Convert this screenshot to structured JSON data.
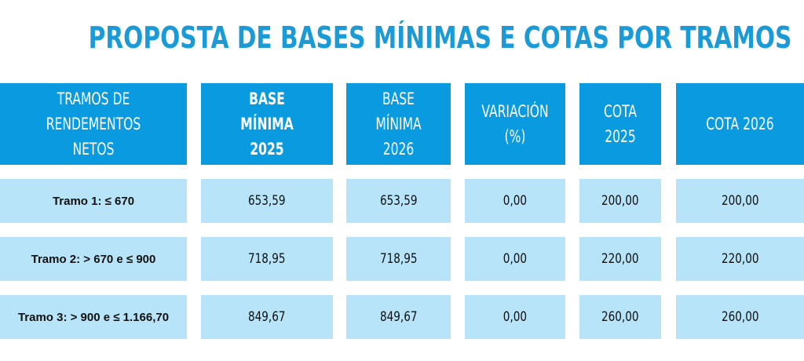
{
  "chart_data": {
    "type": "table",
    "title": "PROPOSTA DE BASES MÍNIMAS E COTAS POR TRAMOS",
    "columns": [
      "TRAMOS DE RENDEMENTOS NETOS",
      "BASE MÍNIMA 2025",
      "BASE MÍNIMA 2026",
      "VARIACIÓN (%)",
      "COTA 2025",
      "COTA 2026"
    ],
    "header_lines": [
      "TRAMOS DE RENDEMENTOS\nNETOS",
      "BASE MÍNIMA\n2025",
      "BASE MÍNIMA\n2026",
      "VARIACIÓN (%)",
      "COTA 2025",
      "COTA 2026"
    ],
    "rows": [
      [
        "Tramo 1: ≤ 670",
        "653,59",
        "653,59",
        "0,00",
        "200,00",
        "200,00"
      ],
      [
        "Tramo 2: > 670 e ≤ 900",
        "718,95",
        "718,95",
        "0,00",
        "220,00",
        "220,00"
      ],
      [
        "Tramo 3: > 900 e ≤ 1.166,70",
        "849,67",
        "849,67",
        "0,00",
        "260,00",
        "260,00"
      ]
    ],
    "colors": {
      "title": "#1a9ad6",
      "header_background": "#0a9ae0",
      "header_text": "#ffffff",
      "row_background": "#b7e4f9",
      "row_text": "#111111"
    }
  }
}
